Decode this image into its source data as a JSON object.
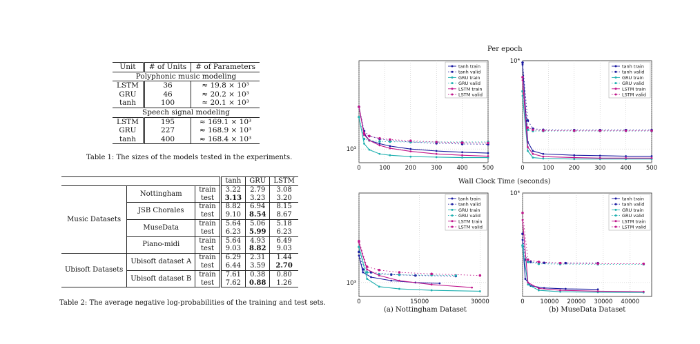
{
  "table1": {
    "headers": [
      "Unit",
      "# of Units",
      "# of Parameters"
    ],
    "sections": [
      {
        "title": "Polyphonic music modeling",
        "rows": [
          [
            "LSTM",
            "36",
            "≈ 19.8 × 10³"
          ],
          [
            "GRU",
            "46",
            "≈ 20.2 × 10³"
          ],
          [
            "tanh",
            "100",
            "≈ 20.1 × 10³"
          ]
        ]
      },
      {
        "title": "Speech signal modeling",
        "rows": [
          [
            "LSTM",
            "195",
            "≈ 169.1 × 10³"
          ],
          [
            "GRU",
            "227",
            "≈ 168.9 × 10³"
          ],
          [
            "tanh",
            "400",
            "≈ 168.4 × 10³"
          ]
        ]
      }
    ],
    "caption": "Table 1: The sizes of the models tested in the experiments."
  },
  "table2": {
    "headers": [
      "",
      "",
      "",
      "tanh",
      "GRU",
      "LSTM"
    ],
    "groups": [
      {
        "group": "Music Datasets",
        "datasets": [
          {
            "name": "Nottingham",
            "rows": [
              [
                "train",
                "3.22",
                "2.79",
                "3.08"
              ],
              [
                "test",
                "3.13",
                "3.23",
                "3.20"
              ]
            ],
            "bold": [
              [],
              [
                1
              ]
            ]
          },
          {
            "name": "JSB Chorales",
            "rows": [
              [
                "train",
                "8.82",
                "6.94",
                "8.15"
              ],
              [
                "test",
                "9.10",
                "8.54",
                "8.67"
              ]
            ],
            "bold": [
              [],
              [
                2
              ]
            ]
          },
          {
            "name": "MuseData",
            "rows": [
              [
                "train",
                "5.64",
                "5.06",
                "5.18"
              ],
              [
                "test",
                "6.23",
                "5.99",
                "6.23"
              ]
            ],
            "bold": [
              [],
              [
                2
              ]
            ]
          },
          {
            "name": "Piano-midi",
            "rows": [
              [
                "train",
                "5.64",
                "4.93",
                "6.49"
              ],
              [
                "test",
                "9.03",
                "8.82",
                "9.03"
              ]
            ],
            "bold": [
              [],
              [
                2
              ]
            ]
          }
        ]
      },
      {
        "group": "Ubisoft Datasets",
        "datasets": [
          {
            "name": "Ubisoft dataset A",
            "rows": [
              [
                "train",
                "6.29",
                "2.31",
                "1.44"
              ],
              [
                "test",
                "6.44",
                "3.59",
                "2.70"
              ]
            ],
            "bold": [
              [],
              [
                3
              ]
            ]
          },
          {
            "name": "Ubisoft dataset B",
            "rows": [
              [
                "train",
                "7.61",
                "0.38",
                "0.80"
              ],
              [
                "test",
                "7.62",
                "0.88",
                "1.26"
              ]
            ],
            "bold": [
              [],
              [
                2
              ]
            ]
          }
        ]
      }
    ],
    "caption": "Table 2: The average negative log-probabilities of the training and test sets."
  },
  "figure": {
    "title_top": "Per epoch",
    "title_bottom": "Wall Clock Time (seconds)",
    "caption_a": "(a) Nottingham Dataset",
    "caption_b": "(b) MuseData Dataset",
    "ytick_1e3": "10³",
    "ytick_1e4": "10⁴"
  },
  "chart_data": [
    {
      "type": "line",
      "panel": "Per epoch — Nottingham",
      "x_ticks": [
        0,
        100,
        200,
        300,
        400,
        500
      ],
      "xlim": [
        0,
        500
      ],
      "log_y": true,
      "series": [
        {
          "name": "tanh train",
          "color": "#1a1aa0",
          "marker": "circle",
          "x": [
            0,
            20,
            40,
            80,
            120,
            200,
            300,
            400,
            500
          ],
          "y": [
            3000,
            1500,
            1250,
            1150,
            1080,
            1000,
            950,
            920,
            900
          ]
        },
        {
          "name": "tanh valid",
          "color": "#1a1aa0",
          "marker": "dot",
          "x": [
            0,
            20,
            40,
            80,
            120,
            200,
            300,
            400,
            500
          ],
          "y": [
            3000,
            1600,
            1400,
            1300,
            1250,
            1200,
            1160,
            1140,
            1130
          ]
        },
        {
          "name": "GRU train",
          "color": "#1fb0b0",
          "marker": "circle",
          "x": [
            0,
            20,
            40,
            80,
            120,
            200,
            300,
            400,
            500
          ],
          "y": [
            2300,
            1150,
            980,
            880,
            850,
            820,
            810,
            800,
            800
          ]
        },
        {
          "name": "GRU valid",
          "color": "#1fb0b0",
          "marker": "dot",
          "x": [
            0,
            20,
            40,
            80,
            120,
            200,
            300,
            400,
            500
          ],
          "y": [
            2300,
            1300,
            1250,
            1220,
            1210,
            1200,
            1200,
            1200,
            1200
          ]
        },
        {
          "name": "LSTM train",
          "color": "#c0168c",
          "marker": "circle",
          "x": [
            0,
            20,
            40,
            80,
            120,
            200,
            300,
            400,
            500
          ],
          "y": [
            3000,
            1450,
            1250,
            1100,
            1020,
            940,
            880,
            850,
            830
          ]
        },
        {
          "name": "LSTM valid",
          "color": "#c0168c",
          "marker": "dot",
          "x": [
            0,
            20,
            40,
            80,
            120,
            200,
            300,
            400,
            500
          ],
          "y": [
            3000,
            1500,
            1400,
            1320,
            1280,
            1240,
            1200,
            1180,
            1170
          ]
        }
      ]
    },
    {
      "type": "line",
      "panel": "Per epoch — MuseData",
      "x_ticks": [
        0,
        100,
        200,
        300,
        400,
        500
      ],
      "xlim": [
        0,
        500
      ],
      "log_y": true,
      "series": [
        {
          "name": "tanh train",
          "color": "#1a1aa0",
          "marker": "circle",
          "x": [
            0,
            20,
            40,
            80,
            200,
            300,
            400,
            500
          ],
          "y": [
            9000,
            1200,
            950,
            880,
            850,
            840,
            830,
            830
          ]
        },
        {
          "name": "tanh valid",
          "color": "#1a1aa0",
          "marker": "dot",
          "x": [
            0,
            20,
            40,
            80,
            200,
            300,
            400,
            500
          ],
          "y": [
            9500,
            2100,
            1700,
            1650,
            1640,
            1640,
            1640,
            1640
          ]
        },
        {
          "name": "GRU train",
          "color": "#1fb0b0",
          "marker": "circle",
          "x": [
            0,
            20,
            40,
            80,
            200,
            300,
            400,
            500
          ],
          "y": [
            4000,
            950,
            800,
            780,
            770,
            770,
            770,
            770
          ]
        },
        {
          "name": "GRU valid",
          "color": "#1fb0b0",
          "marker": "dot",
          "x": [
            0,
            20,
            40,
            80,
            200,
            300,
            400,
            500
          ],
          "y": [
            4500,
            1650,
            1600,
            1600,
            1600,
            1600,
            1600,
            1600
          ]
        },
        {
          "name": "LSTM train",
          "color": "#c0168c",
          "marker": "circle",
          "x": [
            0,
            20,
            40,
            80,
            200,
            300,
            400,
            500
          ],
          "y": [
            6000,
            1050,
            880,
            820,
            800,
            790,
            790,
            790
          ]
        },
        {
          "name": "LSTM valid",
          "color": "#c0168c",
          "marker": "dot",
          "x": [
            0,
            20,
            40,
            80,
            200,
            300,
            400,
            500
          ],
          "y": [
            6500,
            1750,
            1650,
            1620,
            1610,
            1610,
            1610,
            1610
          ]
        }
      ]
    },
    {
      "type": "line",
      "panel": "Wall Clock Time — Nottingham",
      "x_ticks": [
        0,
        15000,
        30000
      ],
      "xlim": [
        0,
        32000
      ],
      "log_y": true,
      "series": [
        {
          "name": "tanh train",
          "color": "#1a1aa0",
          "marker": "circle",
          "x": [
            0,
            1000,
            3000,
            8000,
            14000,
            20000
          ],
          "y": [
            2000,
            1300,
            1150,
            1050,
            1000,
            980
          ]
        },
        {
          "name": "tanh valid",
          "color": "#1a1aa0",
          "marker": "dot",
          "x": [
            0,
            1000,
            3000,
            8000,
            14000,
            24000
          ],
          "y": [
            2200,
            1400,
            1300,
            1230,
            1200,
            1180
          ]
        },
        {
          "name": "GRU train",
          "color": "#1fb0b0",
          "marker": "circle",
          "x": [
            0,
            2000,
            5000,
            10000,
            18000,
            30000
          ],
          "y": [
            2500,
            1100,
            900,
            850,
            820,
            800
          ]
        },
        {
          "name": "GRU valid",
          "color": "#1fb0b0",
          "marker": "dot",
          "x": [
            0,
            2000,
            5000,
            10000,
            18000,
            24000
          ],
          "y": [
            2500,
            1300,
            1240,
            1220,
            1210,
            1200
          ]
        },
        {
          "name": "LSTM train",
          "color": "#c0168c",
          "marker": "circle",
          "x": [
            0,
            2000,
            5000,
            10000,
            18000,
            28000
          ],
          "y": [
            2800,
            1400,
            1200,
            1050,
            950,
            880
          ]
        },
        {
          "name": "LSTM valid",
          "color": "#c0168c",
          "marker": "dot",
          "x": [
            0,
            2000,
            5000,
            10000,
            18000,
            30000
          ],
          "y": [
            2900,
            1500,
            1380,
            1300,
            1250,
            1200
          ]
        }
      ]
    },
    {
      "type": "line",
      "panel": "Wall Clock Time — MuseData",
      "x_ticks": [
        0,
        10000,
        20000,
        30000,
        40000
      ],
      "xlim": [
        0,
        48000
      ],
      "log_y": true,
      "series": [
        {
          "name": "tanh train",
          "color": "#1a1aa0",
          "marker": "circle",
          "x": [
            0,
            1000,
            3000,
            8000,
            16000,
            28000
          ],
          "y": [
            3000,
            1100,
            920,
            870,
            850,
            840
          ]
        },
        {
          "name": "tanh valid",
          "color": "#1a1aa0",
          "marker": "dot",
          "x": [
            0,
            1000,
            3000,
            8000,
            16000,
            28000
          ],
          "y": [
            3500,
            1800,
            1700,
            1660,
            1650,
            1650
          ]
        },
        {
          "name": "GRU train",
          "color": "#1fb0b0",
          "marker": "circle",
          "x": [
            0,
            2000,
            6000,
            14000,
            28000,
            45000
          ],
          "y": [
            2500,
            950,
            820,
            790,
            780,
            775
          ]
        },
        {
          "name": "GRU valid",
          "color": "#1fb0b0",
          "marker": "dot",
          "x": [
            0,
            2000,
            6000,
            14000,
            28000,
            45000
          ],
          "y": [
            2600,
            1700,
            1620,
            1610,
            1600,
            1600
          ]
        },
        {
          "name": "LSTM train",
          "color": "#c0168c",
          "marker": "circle",
          "x": [
            0,
            2000,
            6000,
            14000,
            28000,
            45000
          ],
          "y": [
            5000,
            1000,
            860,
            820,
            800,
            790
          ]
        },
        {
          "name": "LSTM valid",
          "color": "#c0168c",
          "marker": "dot",
          "x": [
            0,
            2000,
            6000,
            14000,
            28000,
            45000
          ],
          "y": [
            6000,
            1800,
            1700,
            1650,
            1630,
            1620
          ]
        }
      ]
    }
  ]
}
